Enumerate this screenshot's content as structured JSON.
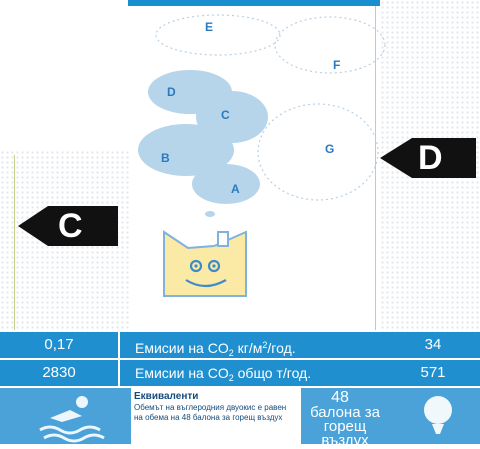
{
  "ratings": {
    "left_class": "C",
    "right_class": "D"
  },
  "clouds": {
    "labels": [
      "A",
      "B",
      "C",
      "D",
      "E",
      "F",
      "G"
    ]
  },
  "table": {
    "row_per_m2": {
      "label_prefix": "Емисии на CO",
      "label_sub": "2",
      "label_mid": " кг/м",
      "label_sup": "2",
      "label_suffix": "/год.",
      "left_value": "0,17",
      "right_value": "34"
    },
    "row_total": {
      "label_prefix": "Емисии на CO",
      "label_sub": "2",
      "label_suffix": " общо т/год.",
      "left_value": "2830",
      "right_value": "571"
    }
  },
  "equivalents": {
    "title": "Еквиваленти",
    "description": "Обемът на въглеродния двуокис е равен на обема на 48 балона за горещ въздух",
    "value": "48",
    "unit": "балона за горещ въздух"
  },
  "colors": {
    "row_blue": "#1f8fd0",
    "band_blue": "#4aa2d9",
    "cloud_fill": "#b6d4ea",
    "arrow_black": "#111111"
  }
}
